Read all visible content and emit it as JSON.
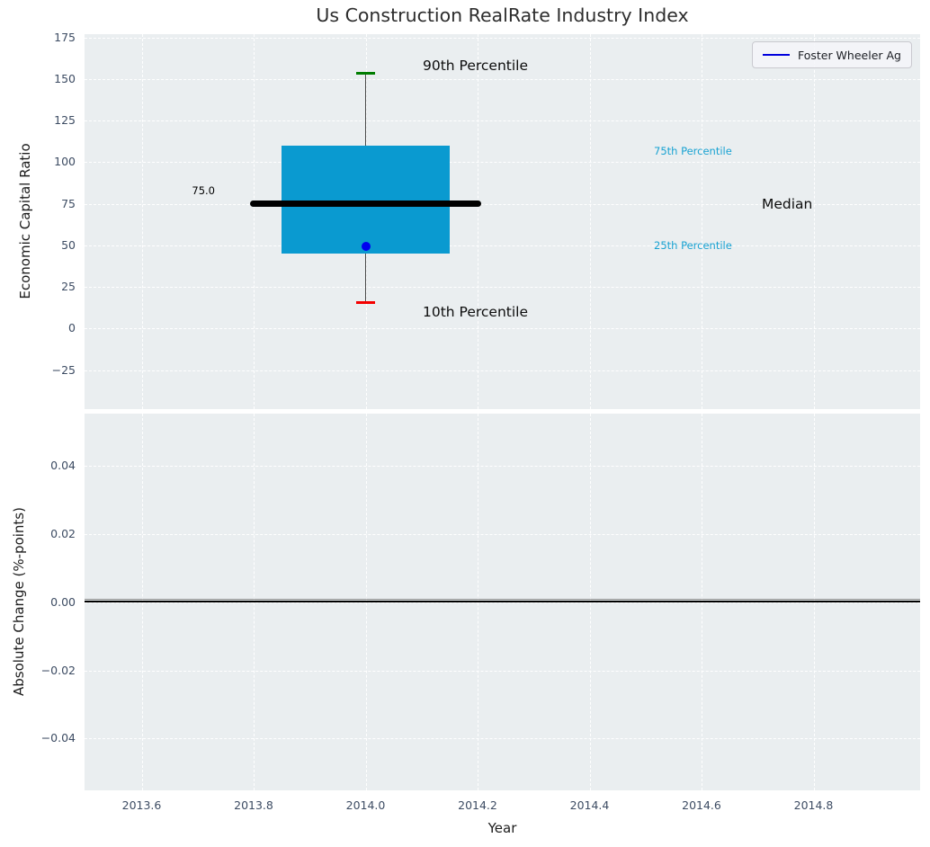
{
  "ui": {
    "title": "Us Construction RealRate Industry Index",
    "top_ylabel": "Economic Capital Ratio",
    "bottom_ylabel": "Absolute Change (%-points)",
    "xlabel": "Year",
    "legend_label": "Foster Wheeler Ag",
    "median_value_label": "75.0",
    "annotations": {
      "p90": "90th Percentile",
      "p75": "75th Percentile",
      "median": "Median",
      "p25": "25th Percentile",
      "p10": "10th Percentile"
    },
    "top_yticklabels": [
      "175",
      "150",
      "125",
      "100",
      "75",
      "50",
      "25",
      "0",
      "−25"
    ],
    "bottom_yticklabels": [
      "0.04",
      "0.02",
      "0.00",
      "−0.02",
      "−0.04"
    ],
    "xticklabels": [
      "2013.6",
      "2013.8",
      "2014.0",
      "2014.2",
      "2014.4",
      "2014.6",
      "2014.8"
    ]
  },
  "colors": {
    "axes_background": "#eaeef0",
    "grid": "#ffffff",
    "tick_label": "#3d4c63",
    "box_fill": "#0a9ad0",
    "median_line": "#000000",
    "p90_cap": "#007d00",
    "p10_cap": "#f40000",
    "whisker": "#4a4a4a",
    "company_point": "#0000f0",
    "legend_line": "#0000dd",
    "percentile_text": "#18a2d2",
    "zero_line": "#000000"
  },
  "chart_data": [
    {
      "type": "box",
      "title": "Us Construction RealRate Industry Index",
      "ylabel": "Economic Capital Ratio",
      "x_center": 2014.0,
      "box_x_range": [
        2013.85,
        2014.15
      ],
      "median_line_x_range": [
        2013.8,
        2014.2
      ],
      "percentiles": {
        "p10": 15,
        "p25": 45,
        "p50": 75.0,
        "p75": 110,
        "p90": 153
      },
      "median_data_label": 75.0,
      "company_point": {
        "name": "Foster Wheeler Ag",
        "x": 2014.0,
        "y": 49
      },
      "yticks": [
        175,
        150,
        125,
        100,
        75,
        50,
        25,
        0,
        -25
      ],
      "xticks": [
        2013.6,
        2013.8,
        2014.0,
        2014.2,
        2014.4,
        2014.6,
        2014.8
      ],
      "ylim": [
        -47.5,
        178
      ],
      "xlim": [
        2013.546,
        2015.032
      ],
      "grid": "white-dashed",
      "legend": {
        "entries": [
          "Foster Wheeler Ag"
        ],
        "position": "upper right"
      }
    },
    {
      "type": "line",
      "ylabel": "Absolute Change (%-points)",
      "xlabel": "Year",
      "series": [
        {
          "name": "zero-baseline",
          "values_constant_y": 0.0
        }
      ],
      "yticks": [
        0.04,
        0.02,
        0.0,
        -0.02,
        -0.04
      ],
      "xticks": [
        2013.6,
        2013.8,
        2014.0,
        2014.2,
        2014.4,
        2014.6,
        2014.8
      ],
      "ylim": [
        -0.0557,
        0.0551
      ],
      "xlim": [
        2013.546,
        2015.032
      ],
      "grid": "white-dashed"
    }
  ]
}
